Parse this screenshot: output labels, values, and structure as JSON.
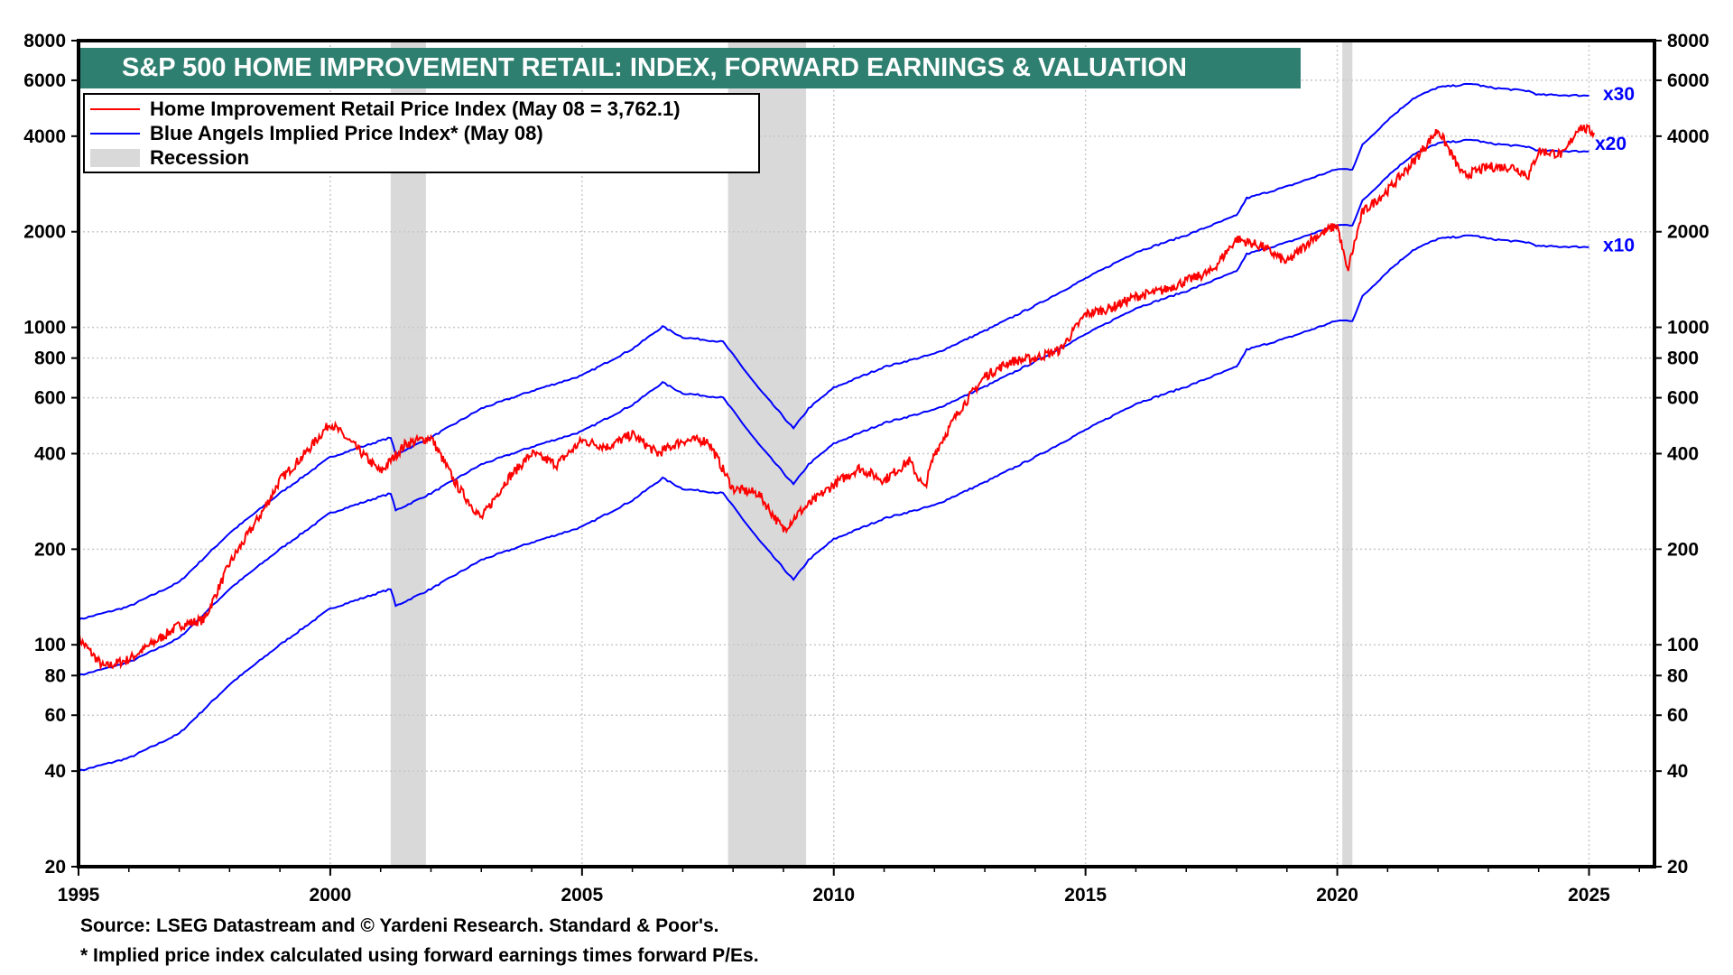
{
  "chart_data": {
    "type": "line",
    "title": "S&P 500 HOME IMPROVEMENT RETAIL: INDEX, FORWARD EARNINGS & VALUATION",
    "xlabel": "",
    "ylabel": "",
    "xlim": [
      1995,
      2026.3
    ],
    "ylim": [
      20,
      8000
    ],
    "yscale": "log",
    "x_ticks": [
      1995,
      2000,
      2005,
      2010,
      2015,
      2020,
      2025
    ],
    "y_ticks": [
      20,
      40,
      60,
      80,
      100,
      200,
      400,
      600,
      800,
      1000,
      2000,
      4000,
      6000,
      8000
    ],
    "grid": true,
    "legend_placement": "top-left",
    "legend": [
      {
        "label": "Home Improvement Retail Price Index (May 08 = 3,762.1)",
        "color": "#ff0000"
      },
      {
        "label": "Blue Angels Implied Price Index* (May 08)",
        "color": "#0000ff"
      },
      {
        "label": "Recession",
        "color": "#d9d9d9"
      }
    ],
    "recessions": [
      [
        2001.2,
        2001.9
      ],
      [
        2007.9,
        2009.45
      ],
      [
        2020.1,
        2020.3
      ]
    ],
    "series": [
      {
        "name": "Home Improvement Retail Price Index",
        "color": "#ff0000",
        "x": [
          1995,
          1995.5,
          1996,
          1997,
          1997.5,
          1998,
          1998.7,
          1999,
          1999.5,
          2000,
          2000.5,
          2001,
          2001.5,
          2002,
          2002.5,
          2003,
          2003.5,
          2004,
          2004.5,
          2005,
          2005.5,
          2006,
          2006.5,
          2007,
          2007.5,
          2008,
          2008.5,
          2009,
          2009.3,
          2010,
          2010.5,
          2011,
          2011.5,
          2011.8,
          2012,
          2012.5,
          2013,
          2013.5,
          2014,
          2014.5,
          2015,
          2015.5,
          2016,
          2016.5,
          2017,
          2017.5,
          2018,
          2018.5,
          2019,
          2019.5,
          2020,
          2020.2,
          2020.5,
          2021,
          2021.5,
          2022,
          2022.5,
          2023,
          2023.5,
          2023.8,
          2024,
          2024.5,
          2024.8,
          2025.1
        ],
        "y": [
          105,
          85,
          90,
          115,
          120,
          180,
          270,
          330,
          400,
          500,
          420,
          350,
          430,
          450,
          320,
          250,
          330,
          400,
          370,
          440,
          420,
          460,
          400,
          440,
          440,
          310,
          300,
          230,
          260,
          320,
          360,
          330,
          380,
          310,
          400,
          550,
          700,
          780,
          800,
          850,
          1100,
          1150,
          1250,
          1300,
          1400,
          1500,
          1900,
          1800,
          1600,
          1900,
          2100,
          1500,
          2300,
          2700,
          3300,
          4200,
          3000,
          3200,
          3200,
          3000,
          3600,
          3500,
          4300,
          4100
        ]
      },
      {
        "name": "Blue Angels Implied Price Index x20",
        "color": "#0000ff",
        "label": "x20",
        "x": [
          1995,
          1996,
          1997,
          1998,
          1999,
          2000,
          2001.2,
          2001.3,
          2002,
          2003,
          2004,
          2005,
          2006,
          2006.6,
          2007,
          2007.8,
          2008.5,
          2009.2,
          2009.5,
          2010,
          2011,
          2012,
          2013,
          2014,
          2015,
          2016,
          2017,
          2018,
          2018.2,
          2019,
          2020,
          2020.3,
          2020.5,
          2021,
          2021.5,
          2022,
          2022.7,
          2023,
          2023.8,
          2024,
          2025
        ],
        "y": [
          80,
          88,
          105,
          150,
          200,
          260,
          300,
          265,
          300,
          370,
          420,
          470,
          570,
          670,
          620,
          600,
          430,
          320,
          370,
          430,
          500,
          550,
          650,
          780,
          950,
          1150,
          1300,
          1500,
          1700,
          1850,
          2100,
          2100,
          2500,
          3000,
          3500,
          3800,
          3900,
          3800,
          3700,
          3600,
          3580
        ]
      },
      {
        "name": "Blue Angels Implied Price Index x30",
        "color": "#0000ff",
        "label": "x30",
        "multiplier_of_x20": 1.5
      },
      {
        "name": "Blue Angels Implied Price Index x10",
        "color": "#0000ff",
        "label": "x10",
        "multiplier_of_x20": 0.5
      }
    ]
  },
  "footer": {
    "source": "Source: LSEG Datastream and © Yardeni Research. Standard & Poor's.",
    "note": "* Implied price index calculated using forward earnings times forward P/Es."
  }
}
